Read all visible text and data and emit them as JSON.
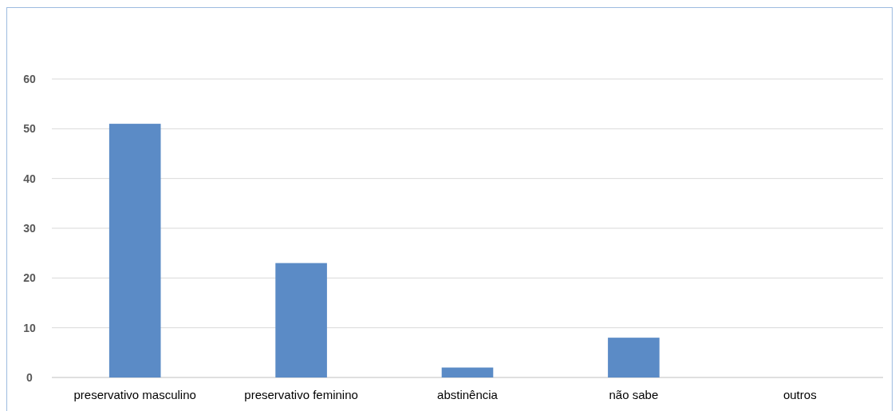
{
  "chart_data": {
    "type": "bar",
    "categories": [
      "preservativo masculino",
      "preservativo feminino",
      "abstinência",
      "não sabe",
      "outros"
    ],
    "values": [
      51,
      23,
      2,
      8,
      0
    ],
    "color": "#5b8bc6",
    "ylim": [
      0,
      60
    ],
    "yticks": [
      0,
      10,
      20,
      30,
      40,
      50,
      60
    ],
    "grid": "y"
  }
}
